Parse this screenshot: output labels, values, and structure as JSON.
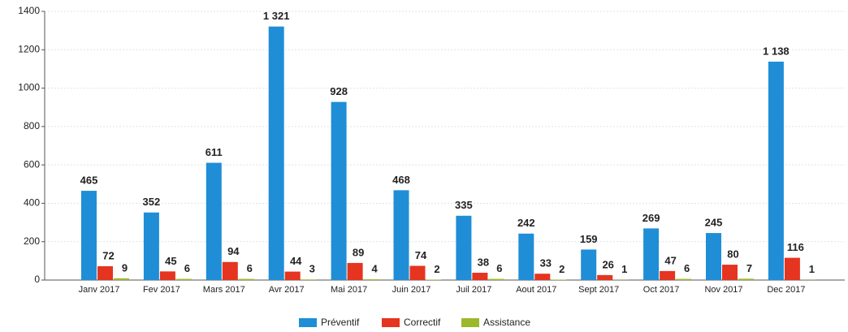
{
  "chart_data": {
    "type": "bar",
    "categories": [
      "Janv 2017",
      "Fev 2017",
      "Mars 2017",
      "Avr 2017",
      "Mai 2017",
      "Juin 2017",
      "Juil 2017",
      "Aout 2017",
      "Sept 2017",
      "Oct 2017",
      "Nov 2017",
      "Dec 2017"
    ],
    "series": [
      {
        "name": "Préventif",
        "color": "#1f8ed6",
        "values": [
          465,
          352,
          611,
          1321,
          928,
          468,
          335,
          242,
          159,
          269,
          245,
          1138
        ],
        "value_labels": [
          "465",
          "352",
          "611",
          "1 321",
          "928",
          "468",
          "335",
          "242",
          "159",
          "269",
          "245",
          "1 138"
        ]
      },
      {
        "name": "Correctif",
        "color": "#e5341f",
        "values": [
          72,
          45,
          94,
          44,
          89,
          74,
          38,
          33,
          26,
          47,
          80,
          116
        ]
      },
      {
        "name": "Assistance",
        "color": "#9cb82c",
        "values": [
          9,
          6,
          6,
          3,
          4,
          2,
          6,
          2,
          1,
          6,
          7,
          1
        ]
      }
    ],
    "ylim": [
      0,
      1400
    ],
    "yticks": [
      0,
      200,
      400,
      600,
      800,
      1000,
      1200,
      1400
    ],
    "grid": true,
    "legend": "bottom"
  }
}
